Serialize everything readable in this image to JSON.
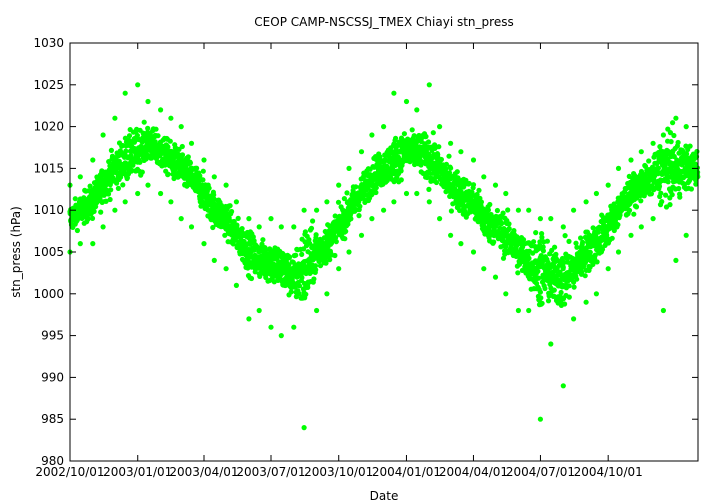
{
  "chart_data": {
    "type": "scatter",
    "title": "CEOP CAMP-NSCSSJ_TMEX Chiayi  stn_press",
    "xlabel": "Date",
    "ylabel": "stn_press (hPa)",
    "xlim": [
      "2002-10-01",
      "2005-01-31"
    ],
    "ylim": [
      980,
      1030
    ],
    "yticks": [
      980,
      985,
      990,
      995,
      1000,
      1005,
      1010,
      1015,
      1020,
      1025,
      1030
    ],
    "xticks": [
      {
        "date": "2002-10-01",
        "label": "2002/10/01"
      },
      {
        "date": "2003-01-01",
        "label": "2003/01/01"
      },
      {
        "date": "2003-04-01",
        "label": "2003/04/01"
      },
      {
        "date": "2003-07-01",
        "label": "2003/07/01"
      },
      {
        "date": "2003-10-01",
        "label": "2003/10/01"
      },
      {
        "date": "2004-01-01",
        "label": "2004/01/01"
      },
      {
        "date": "2004-04-01",
        "label": "2004/04/01"
      },
      {
        "date": "2004-07-01",
        "label": "2004/07/01"
      },
      {
        "date": "2004-10-01",
        "label": "2004/10/01"
      }
    ],
    "grid": false,
    "legend": "none",
    "marker_color": "#00ff00",
    "series": [
      {
        "x": [
          "2002-10-01",
          "2002-10-15",
          "2002-11-01",
          "2002-11-15",
          "2002-12-01",
          "2002-12-15",
          "2003-01-01",
          "2003-01-15",
          "2003-02-01",
          "2003-02-15",
          "2003-03-01",
          "2003-03-15",
          "2003-04-01",
          "2003-04-15",
          "2003-05-01",
          "2003-05-15",
          "2003-06-01",
          "2003-06-15",
          "2003-07-01",
          "2003-07-15",
          "2003-08-01",
          "2003-08-15",
          "2003-09-01",
          "2003-09-15",
          "2003-10-01",
          "2003-10-15",
          "2003-11-01",
          "2003-11-15",
          "2003-12-01",
          "2003-12-15",
          "2004-01-01",
          "2004-01-15",
          "2004-02-01",
          "2004-02-15",
          "2004-03-01",
          "2004-03-15",
          "2004-04-01",
          "2004-04-15",
          "2004-05-01",
          "2004-05-15",
          "2004-06-01",
          "2004-06-15",
          "2004-07-01",
          "2004-07-15",
          "2004-08-01",
          "2004-08-15",
          "2004-09-01",
          "2004-09-15",
          "2004-10-01",
          "2004-10-15",
          "2004-11-01",
          "2004-11-15",
          "2004-12-01",
          "2004-12-15",
          "2005-01-01",
          "2005-01-15",
          "2005-01-31"
        ],
        "y": [
          1009,
          1010,
          1011,
          1013,
          1015,
          1016,
          1017,
          1018,
          1017,
          1016,
          1015,
          1014,
          1012,
          1010,
          1009,
          1007,
          1005,
          1004,
          1004,
          1003,
          1002,
          1003,
          1005,
          1006,
          1008,
          1010,
          1012,
          1014,
          1015,
          1016,
          1017,
          1017,
          1016,
          1015,
          1013,
          1012,
          1011,
          1009,
          1008,
          1007,
          1005,
          1004,
          1003,
          1002,
          1002,
          1003,
          1005,
          1006,
          1008,
          1010,
          1012,
          1013,
          1014,
          1015,
          1015,
          1015,
          1015
        ],
        "y_low": [
          1005,
          1006,
          1006,
          1008,
          1010,
          1011,
          1012,
          1013,
          1012,
          1011,
          1009,
          1008,
          1006,
          1004,
          1003,
          1001,
          997,
          998,
          996,
          995,
          996,
          984,
          998,
          1000,
          1003,
          1005,
          1007,
          1009,
          1010,
          1011,
          1012,
          1012,
          1011,
          1009,
          1007,
          1006,
          1005,
          1003,
          1002,
          1000,
          998,
          998,
          985,
          994,
          989,
          997,
          999,
          1000,
          1003,
          1005,
          1007,
          1008,
          1009,
          998,
          1004,
          1007,
          1010
        ],
        "y_high": [
          1013,
          1014,
          1016,
          1019,
          1021,
          1024,
          1025,
          1023,
          1022,
          1021,
          1020,
          1018,
          1016,
          1014,
          1013,
          1011,
          1009,
          1008,
          1009,
          1008,
          1008,
          1010,
          1010,
          1011,
          1013,
          1015,
          1017,
          1019,
          1020,
          1024,
          1023,
          1022,
          1025,
          1020,
          1018,
          1017,
          1016,
          1014,
          1013,
          1012,
          1010,
          1010,
          1009,
          1009,
          1008,
          1010,
          1011,
          1012,
          1013,
          1015,
          1016,
          1017,
          1018,
          1019,
          1021,
          1020,
          1021
        ]
      }
    ]
  }
}
